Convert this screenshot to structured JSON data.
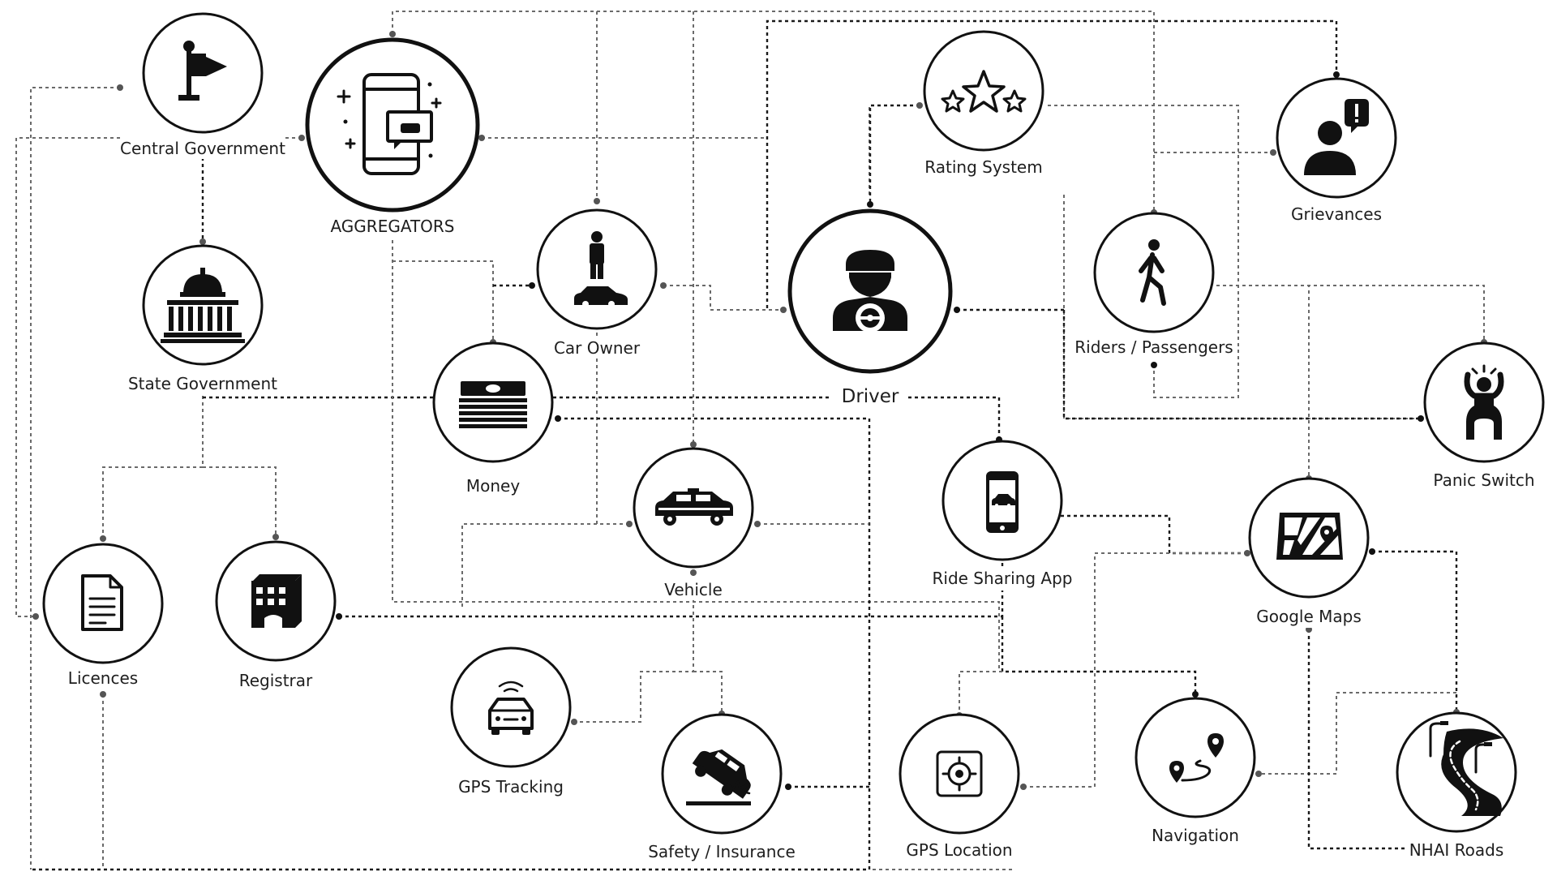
{
  "nodes": {
    "central_government": "Central Government",
    "aggregators": "AGGREGATORS",
    "state_government": "State Government",
    "car_owner": "Car Owner",
    "money": "Money",
    "vehicle": "Vehicle",
    "licences": "Licences",
    "registrar": "Registrar",
    "gps_tracking": "GPS Tracking",
    "safety_insurance": "Safety / Insurance",
    "driver": "Driver",
    "rating_system": "Rating System",
    "ride_sharing_app": "Ride Sharing App",
    "gps_location": "GPS  Location",
    "navigation": "Navigation",
    "riders_passengers": "Riders / Passengers",
    "grievances": "Grievances",
    "panic_switch": "Panic Switch",
    "google_maps": "Google Maps",
    "nhai_roads": "NHAI Roads"
  },
  "icons": {
    "central_government": "flag-icon",
    "aggregators": "phone-app-icon",
    "state_government": "capitol-building-icon",
    "car_owner": "person-car-icon",
    "money": "money-stack-icon",
    "vehicle": "taxi-icon",
    "licences": "document-icon",
    "registrar": "office-building-icon",
    "gps_tracking": "car-signal-icon",
    "safety_insurance": "car-crash-icon",
    "driver": "driver-icon",
    "rating_system": "stars-icon",
    "ride_sharing_app": "mobile-app-icon",
    "gps_location": "target-location-icon",
    "navigation": "route-pin-icon",
    "riders_passengers": "walking-person-icon",
    "grievances": "complaint-person-icon",
    "panic_switch": "panic-person-icon",
    "google_maps": "map-icon",
    "nhai_roads": "road-icon"
  },
  "colors": {
    "ink": "#111111",
    "connector": "#6a6a6a",
    "background": "#ffffff"
  }
}
